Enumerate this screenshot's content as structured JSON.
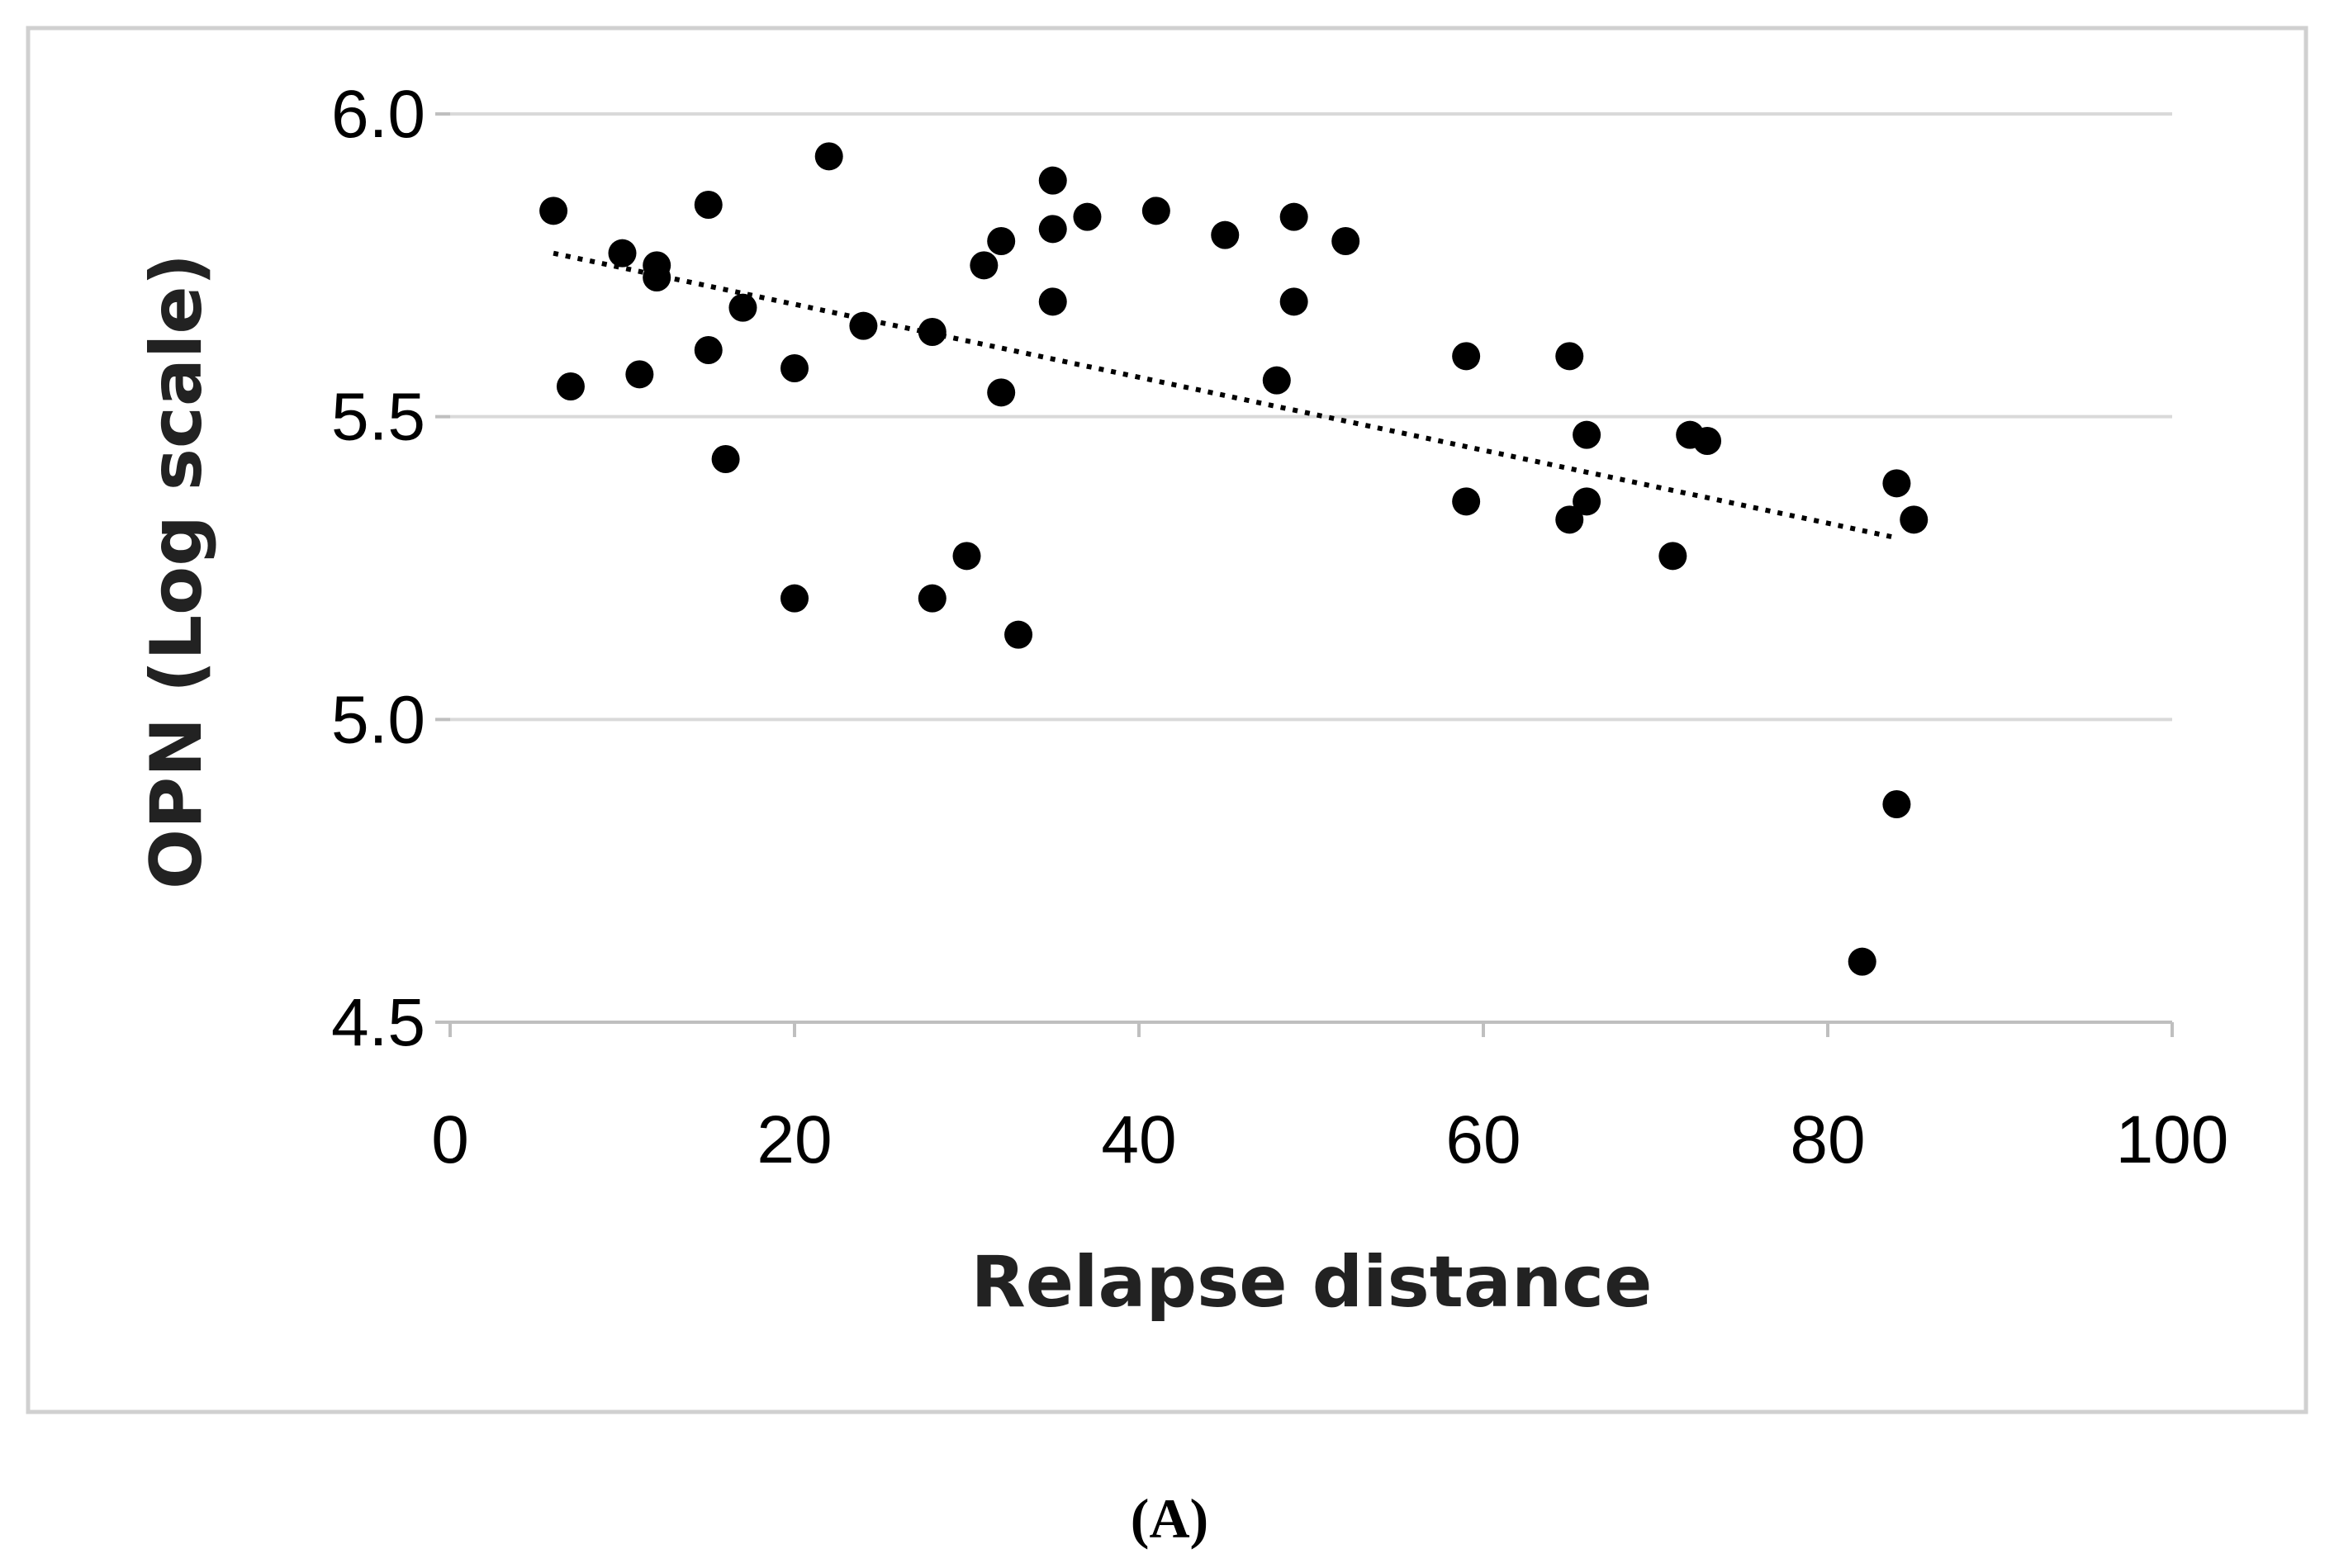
{
  "panel_label": "(A)",
  "chart_data": {
    "type": "scatter",
    "xlabel": "Relapse distance",
    "ylabel": "OPN (Log scale)",
    "xlim": [
      0,
      100
    ],
    "ylim": [
      4.5,
      6.0
    ],
    "xticks": [
      "0",
      "20",
      "40",
      "60",
      "80",
      "100"
    ],
    "yticks": [
      "4.5",
      "5.0",
      "5.5",
      "6.0"
    ],
    "grid": "horizontal",
    "legend": "none",
    "trendline": {
      "style": "dotted",
      "x": [
        6,
        84
      ],
      "y": [
        5.77,
        5.3
      ]
    },
    "points": [
      {
        "x": 6,
        "y": 5.84
      },
      {
        "x": 7,
        "y": 5.55
      },
      {
        "x": 10,
        "y": 5.77
      },
      {
        "x": 11,
        "y": 5.57
      },
      {
        "x": 12,
        "y": 5.75
      },
      {
        "x": 12,
        "y": 5.73
      },
      {
        "x": 15,
        "y": 5.85
      },
      {
        "x": 15,
        "y": 5.61
      },
      {
        "x": 16,
        "y": 5.43
      },
      {
        "x": 17,
        "y": 5.68
      },
      {
        "x": 20,
        "y": 5.58
      },
      {
        "x": 20,
        "y": 5.2
      },
      {
        "x": 22,
        "y": 5.93
      },
      {
        "x": 24,
        "y": 5.65
      },
      {
        "x": 28,
        "y": 5.64
      },
      {
        "x": 28,
        "y": 5.2
      },
      {
        "x": 30,
        "y": 5.27
      },
      {
        "x": 31,
        "y": 5.75
      },
      {
        "x": 32,
        "y": 5.79
      },
      {
        "x": 32,
        "y": 5.54
      },
      {
        "x": 33,
        "y": 5.14
      },
      {
        "x": 35,
        "y": 5.89
      },
      {
        "x": 35,
        "y": 5.81
      },
      {
        "x": 35,
        "y": 5.69
      },
      {
        "x": 37,
        "y": 5.83
      },
      {
        "x": 41,
        "y": 5.84
      },
      {
        "x": 45,
        "y": 5.8
      },
      {
        "x": 48,
        "y": 5.56
      },
      {
        "x": 49,
        "y": 5.83
      },
      {
        "x": 49,
        "y": 5.69
      },
      {
        "x": 52,
        "y": 5.79
      },
      {
        "x": 59,
        "y": 5.6
      },
      {
        "x": 59,
        "y": 5.36
      },
      {
        "x": 65,
        "y": 5.6
      },
      {
        "x": 65,
        "y": 5.33
      },
      {
        "x": 66,
        "y": 5.47
      },
      {
        "x": 66,
        "y": 5.36
      },
      {
        "x": 71,
        "y": 5.27
      },
      {
        "x": 72,
        "y": 5.47
      },
      {
        "x": 73,
        "y": 5.46
      },
      {
        "x": 82,
        "y": 4.6
      },
      {
        "x": 84,
        "y": 5.39
      },
      {
        "x": 84,
        "y": 4.86
      },
      {
        "x": 85,
        "y": 5.33
      }
    ]
  }
}
